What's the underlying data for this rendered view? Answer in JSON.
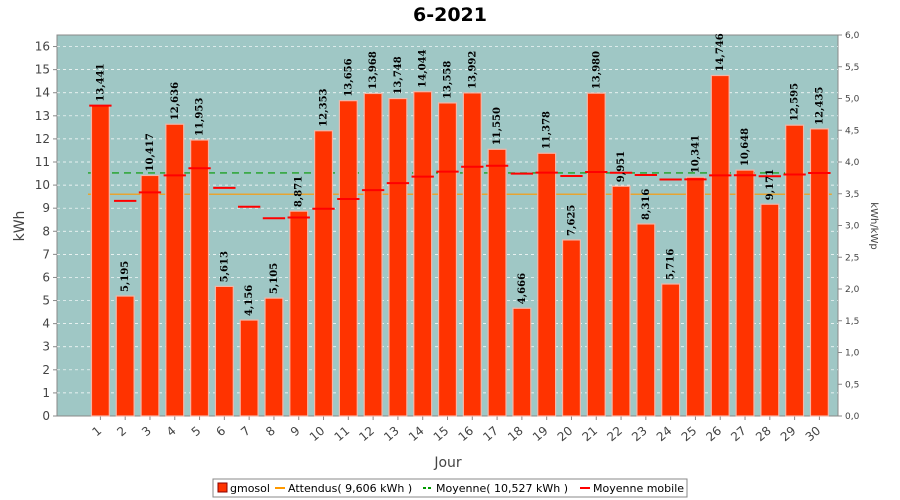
{
  "chart_data": {
    "type": "bar",
    "title": "6-2021",
    "xlabel": "Jour",
    "ylabel": "kWh",
    "y2label": "kWh/kWp",
    "ylim": [
      0,
      16.5
    ],
    "y2lim": [
      0,
      6.0
    ],
    "yticks": [
      0,
      1,
      2,
      3,
      4,
      5,
      6,
      7,
      8,
      9,
      10,
      11,
      12,
      13,
      14,
      15,
      16
    ],
    "y2ticks": [
      "0,0",
      "0,5",
      "1,0",
      "1,5",
      "2,0",
      "2,5",
      "3,0",
      "3,5",
      "4,0",
      "4,5",
      "5,0",
      "5,5",
      "6,0"
    ],
    "categories": [
      "1",
      "2",
      "3",
      "4",
      "5",
      "6",
      "7",
      "8",
      "9",
      "10",
      "11",
      "12",
      "13",
      "14",
      "15",
      "16",
      "17",
      "18",
      "19",
      "20",
      "21",
      "22",
      "23",
      "24",
      "25",
      "26",
      "27",
      "28",
      "29",
      "30"
    ],
    "series": [
      {
        "name": "gmosol",
        "color": "#ff3300",
        "values": [
          13.441,
          5.195,
          10.417,
          12.636,
          11.953,
          5.613,
          4.156,
          5.105,
          8.871,
          12.353,
          13.656,
          13.968,
          13.748,
          14.044,
          13.558,
          13.992,
          11.55,
          4.666,
          11.378,
          7.625,
          13.98,
          9.951,
          8.316,
          5.716,
          10.341,
          14.746,
          10.648,
          9.171,
          12.595,
          12.435
        ],
        "labels": [
          "13,441",
          "5,195",
          "10,417",
          "12,636",
          "11,953",
          "5,613",
          "4,156",
          "5,105",
          "8,871",
          "12,353",
          "13,656",
          "13,968",
          "13,748",
          "14,044",
          "13,558",
          "13,992",
          "11,550",
          "4,666",
          "11,378",
          "7,625",
          "13,980",
          "9,951",
          "8,316",
          "5,716",
          "10,341",
          "14,746",
          "10,648",
          "9,171",
          "12,595",
          "12,435"
        ]
      },
      {
        "name": "Attendus( 9,606 kWh )",
        "color": "#ff9900",
        "value": 9.606
      },
      {
        "name": "Moyenne( 10,527 kWh )",
        "color": "#009900",
        "value": 10.527
      },
      {
        "name": "Moyenne mobile",
        "color": "#ff0000",
        "values": [
          13.441,
          9.318,
          9.684,
          10.422,
          10.729,
          9.877,
          9.06,
          8.566,
          8.599,
          8.975,
          9.4,
          9.781,
          10.086,
          10.369,
          10.581,
          10.794,
          10.839,
          10.496,
          10.542,
          10.396,
          10.566,
          10.537,
          10.438,
          10.242,
          10.246,
          10.419,
          10.428,
          10.383,
          10.459,
          10.525
        ]
      }
    ],
    "grid": true,
    "legend": "bottom"
  }
}
